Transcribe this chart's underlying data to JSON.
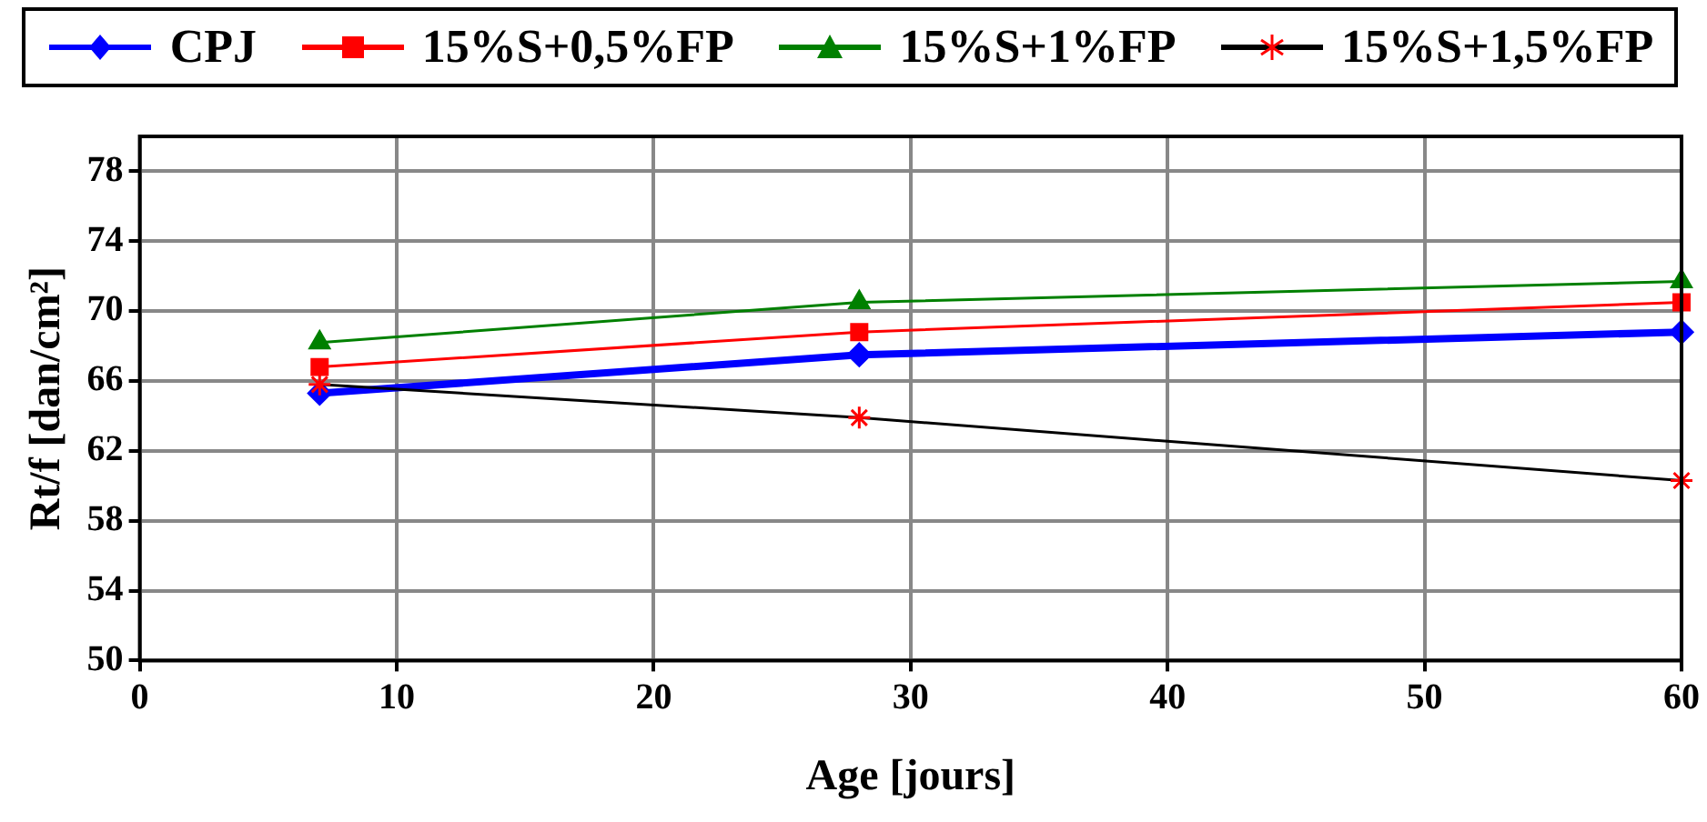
{
  "chart_data": {
    "type": "line",
    "xlabel": "Age [jours]",
    "ylabel": "Rt/f [dan/cm²]",
    "x": [
      7,
      28,
      60
    ],
    "series": [
      {
        "name": "CPJ",
        "color": "#0000ff",
        "marker": "diamond",
        "values": [
          65.3,
          67.5,
          68.8
        ]
      },
      {
        "name": "15%S+0,5%FP",
        "color": "#ff0000",
        "marker": "square",
        "values": [
          66.8,
          68.8,
          70.5
        ]
      },
      {
        "name": "15%S+1%FP",
        "color": "#008000",
        "marker": "triangle",
        "values": [
          68.2,
          70.5,
          71.7
        ]
      },
      {
        "name": "15%S+1,5%FP",
        "color": "#000000",
        "colors": [
          "#ff0000",
          "#ff0000",
          "#ff0000"
        ],
        "marker": "cross",
        "values": [
          65.8,
          63.9,
          60.3
        ]
      }
    ],
    "xlim": [
      0,
      60
    ],
    "xticks": [
      0,
      10,
      20,
      30,
      40,
      50,
      60
    ],
    "ylim": [
      50,
      80
    ],
    "yticks": [
      50,
      54,
      58,
      62,
      66,
      70,
      74,
      78
    ],
    "grid": true,
    "legend": "top",
    "line_style": "solid"
  }
}
